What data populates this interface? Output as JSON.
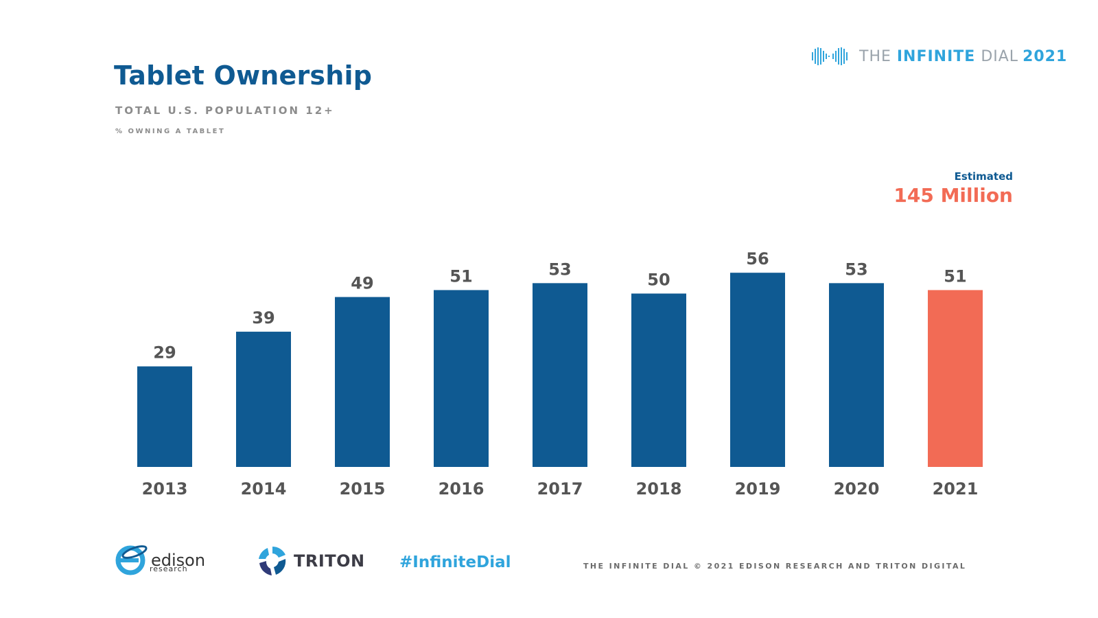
{
  "header": {
    "title": "Tablet Ownership",
    "subtitle": "TOTAL U.S. POPULATION 12+",
    "subsubtitle": "% OWNING A TABLET"
  },
  "brand": {
    "the": "THE ",
    "infinite": "INFINITE",
    "dial": " DIAL",
    "year": "2021",
    "icon": "infinity-wave-logo-icon"
  },
  "estimate": {
    "label": "Estimated",
    "value": "145 Million"
  },
  "colors": {
    "bar": "#0f5a92",
    "highlight": "#f26b55",
    "label": "#555555",
    "accent": "#2fa4dc"
  },
  "chart_data": {
    "type": "bar",
    "categories": [
      "2013",
      "2014",
      "2015",
      "2016",
      "2017",
      "2018",
      "2019",
      "2020",
      "2021"
    ],
    "values": [
      29,
      39,
      49,
      51,
      53,
      50,
      56,
      53,
      51
    ],
    "highlight_index": 8,
    "data_labels": true,
    "grid": false,
    "legend": "none"
  },
  "footer": {
    "edison_word": "edison",
    "edison_sub": "research",
    "triton_word": "TRITON",
    "hashtag": "#InfiniteDial",
    "copyright": "THE INFINITE DIAL   © 2021 EDISON RESEARCH AND TRITON DIGITAL"
  }
}
